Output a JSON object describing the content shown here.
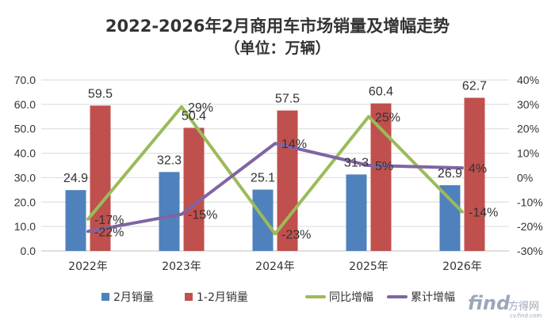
{
  "chart_data": {
    "type": "bar",
    "title": "2022-2026年2月商用车市场销量及增幅走势",
    "subtitle": "（单位：万辆）",
    "categories": [
      "2022年",
      "2023年",
      "2024年",
      "2025年",
      "2026年"
    ],
    "ylim": [
      0,
      70
    ],
    "y_ticks": [
      "0.0",
      "10.0",
      "20.0",
      "30.0",
      "40.0",
      "50.0",
      "60.0",
      "70.0"
    ],
    "y2lim": [
      -30,
      40
    ],
    "y2_ticks": [
      "-30%",
      "-20%",
      "-10%",
      "0%",
      "10%",
      "20%",
      "30%",
      "40%"
    ],
    "series": [
      {
        "name": "2月销量",
        "type": "bar",
        "axis": "left",
        "color": "#4f81bd",
        "values": [
          24.9,
          32.3,
          25.1,
          31.3,
          26.9
        ],
        "labels": [
          "24.9",
          "32.3",
          "25.1",
          "31.3",
          "26.9"
        ]
      },
      {
        "name": "1-2月销量",
        "type": "bar",
        "axis": "left",
        "color": "#c0504d",
        "values": [
          59.5,
          50.4,
          57.5,
          60.4,
          62.7
        ],
        "labels": [
          "59.5",
          "50.4",
          "57.5",
          "60.4",
          "62.7"
        ]
      },
      {
        "name": "同比增幅",
        "type": "line",
        "axis": "right",
        "color": "#9bbb59",
        "values": [
          -17,
          29,
          -23,
          25,
          -14
        ],
        "labels": [
          "-17%",
          "29%",
          "-23%",
          "25%",
          "-14%"
        ]
      },
      {
        "name": "累计增幅",
        "type": "line",
        "axis": "right",
        "color": "#8064a2",
        "values": [
          -22,
          -15,
          14,
          5,
          4
        ],
        "labels": [
          "-22%",
          "-15%",
          "14%",
          "5%",
          "4%"
        ]
      }
    ],
    "legend_position": "bottom"
  },
  "watermark": {
    "text": "find",
    "suffix": "方得网",
    "domain": "cv.find.com"
  }
}
